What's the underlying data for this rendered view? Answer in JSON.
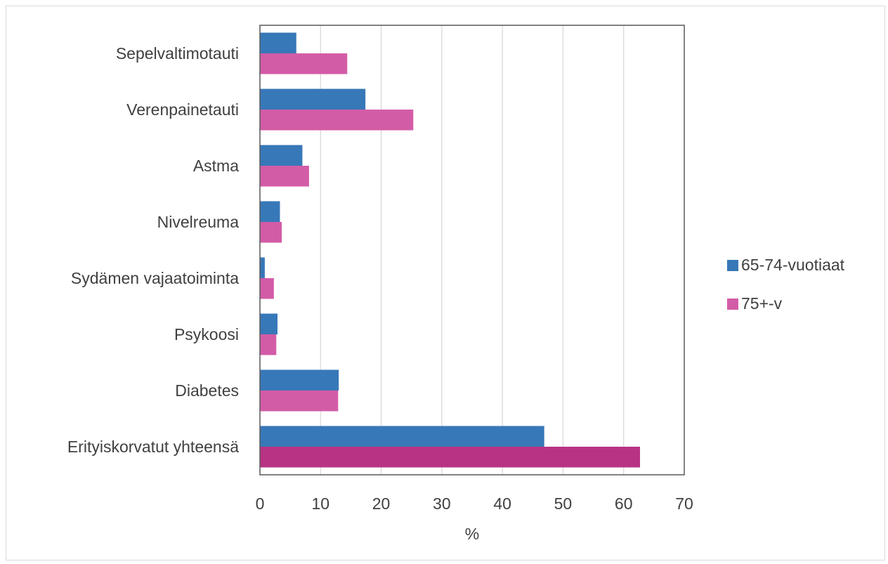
{
  "chart_data": {
    "type": "bar",
    "orientation": "horizontal",
    "categories": [
      "Sepelvaltimotauti",
      "Verenpainetauti",
      "Astma",
      "Nivelreuma",
      "Sydämen vajaatoiminta",
      "Psykoosi",
      "Diabetes",
      "Erityiskorvatut yhteensä"
    ],
    "series": [
      {
        "name": "65-74-vuotiaat",
        "color": "#3778b8",
        "values": [
          6.0,
          17.4,
          7.0,
          3.3,
          0.8,
          2.9,
          13.0,
          46.9
        ]
      },
      {
        "name": "75+-v",
        "color": "#d35ca7",
        "values": [
          14.4,
          25.3,
          8.1,
          3.6,
          2.3,
          2.7,
          12.9,
          62.7
        ]
      }
    ],
    "highlight": {
      "category_index": 7,
      "series_index": 1,
      "color": "#b83384"
    },
    "xlim": [
      0,
      70
    ],
    "xticks": [
      "0",
      "10",
      "20",
      "30",
      "40",
      "50",
      "60",
      "70"
    ],
    "xlabel": "%",
    "ylabel": "",
    "grid": "vertical",
    "legend_position": "right"
  }
}
